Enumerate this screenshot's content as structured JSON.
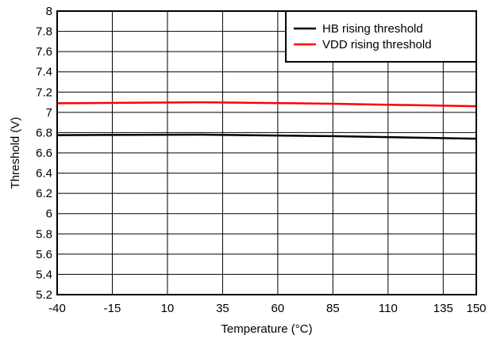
{
  "chart_data": {
    "type": "line",
    "title": "",
    "xlabel": "Temperature (°C)",
    "ylabel": "Threshold (V)",
    "xlim": [
      -40,
      150
    ],
    "ylim": [
      5.2,
      8
    ],
    "x_ticks": [
      -40,
      -15,
      10,
      35,
      60,
      85,
      110,
      135,
      150
    ],
    "y_ticks": [
      5.2,
      5.4,
      5.6,
      5.8,
      6,
      6.2,
      6.4,
      6.6,
      6.8,
      7,
      7.2,
      7.4,
      7.6,
      7.8,
      8
    ],
    "x_tick_labels": [
      "-40",
      "-15",
      "10",
      "35",
      "60",
      "85",
      "110",
      "135",
      "150"
    ],
    "y_tick_labels": [
      "5.2",
      "5.4",
      "5.6",
      "5.8",
      "6",
      "6.2",
      "6.4",
      "6.6",
      "6.8",
      "7",
      "7.2",
      "7.4",
      "7.6",
      "7.8",
      "8"
    ],
    "grid": true,
    "legend_position": "top-right",
    "series": [
      {
        "name": "HB rising threshold",
        "color": "#000000",
        "x": [
          -40,
          25,
          85,
          150
        ],
        "y": [
          6.775,
          6.78,
          6.765,
          6.74
        ]
      },
      {
        "name": "VDD rising threshold",
        "color": "#ff0000",
        "x": [
          -40,
          25,
          85,
          150
        ],
        "y": [
          7.09,
          7.1,
          7.085,
          7.06
        ]
      }
    ]
  }
}
